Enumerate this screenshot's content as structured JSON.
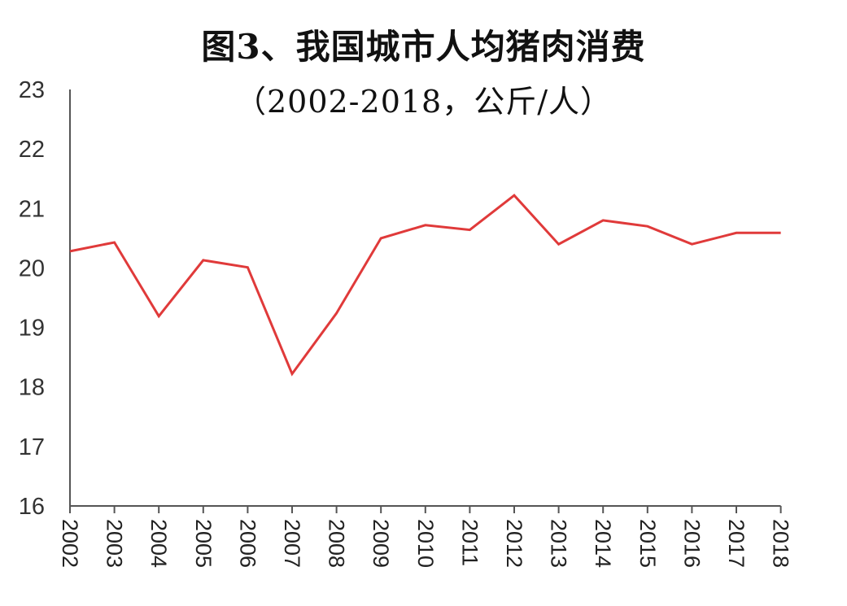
{
  "title_line1": "图3、我国城市人均猪肉消费",
  "title_line2": "（2002-2018，公斤/人）",
  "colors": {
    "line": "#e03a3a",
    "axis": "#555555",
    "text": "#222222"
  },
  "chart_data": {
    "type": "line",
    "title": "图3、我国城市人均猪肉消费（2002-2018，公斤/人）",
    "xlabel": "",
    "ylabel": "公斤/人",
    "ylim": [
      16,
      23
    ],
    "yticks": [
      16,
      17,
      18,
      19,
      20,
      21,
      22,
      23
    ],
    "grid": false,
    "legend": "none",
    "categories": [
      "2002",
      "2003",
      "2004",
      "2005",
      "2006",
      "2007",
      "2008",
      "2009",
      "2010",
      "2011",
      "2012",
      "2013",
      "2014",
      "2015",
      "2016",
      "2017",
      "2018"
    ],
    "series": [
      {
        "name": "城市人均猪肉消费",
        "values": [
          20.28,
          20.43,
          19.19,
          20.13,
          20.01,
          18.22,
          19.24,
          20.5,
          20.72,
          20.64,
          21.22,
          20.4,
          20.8,
          20.7,
          20.4,
          20.59,
          20.59
        ]
      }
    ]
  }
}
